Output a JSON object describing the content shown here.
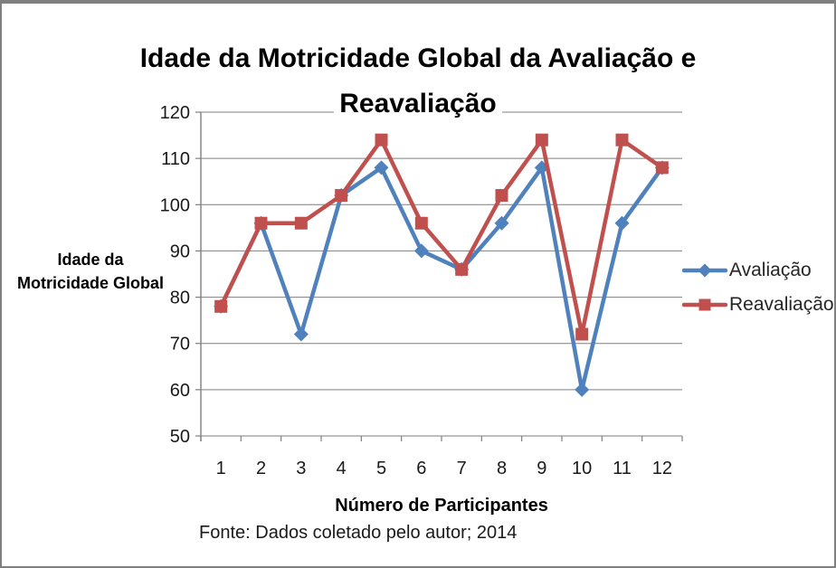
{
  "frame": {
    "background": "#ffffff",
    "border_color": "#7f7f7f"
  },
  "chart_data": {
    "type": "line",
    "title": "Idade da Motricidade Global da Avaliação e Reavaliação",
    "title_lines": [
      "Idade da Motricidade Global da Avaliação e",
      "Reavaliação"
    ],
    "xlabel": "Número de Participantes",
    "ylabel": "Idade da Motricidade Global",
    "ylabel_lines": [
      "Idade da",
      "Motricidade Global"
    ],
    "categories": [
      "1",
      "2",
      "3",
      "4",
      "5",
      "6",
      "7",
      "8",
      "9",
      "10",
      "11",
      "12"
    ],
    "series": [
      {
        "name": "Avaliação",
        "marker": "diamond",
        "color": "#4F81BD",
        "values": [
          78,
          96,
          72,
          102,
          108,
          90,
          86,
          96,
          108,
          60,
          96,
          108
        ]
      },
      {
        "name": "Reavaliação",
        "marker": "square",
        "color": "#C0504D",
        "values": [
          78,
          96,
          96,
          102,
          114,
          96,
          86,
          102,
          114,
          72,
          114,
          108
        ]
      }
    ],
    "ylim": [
      50,
      120
    ],
    "ytick_step": 10,
    "ytick_labels": [
      "50",
      "60",
      "70",
      "80",
      "90",
      "100",
      "110",
      "120"
    ],
    "grid": true,
    "gridline_color": "#7F7F7F",
    "tick_label_color": "#1a1a1a",
    "legend_position": "right",
    "source_note": "Fonte: Dados coletado pelo autor; 2014"
  }
}
